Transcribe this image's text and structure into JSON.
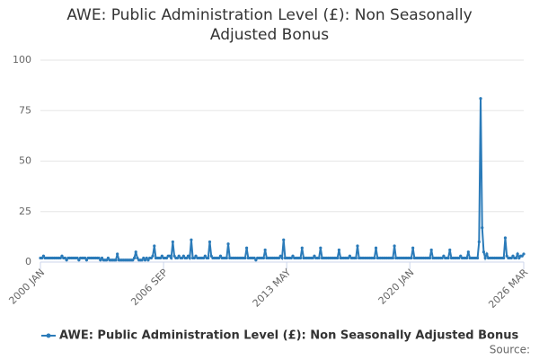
{
  "chart_data": {
    "type": "line",
    "title": "AWE: Public Administration Level (£): Non Seasonally Adjusted Bonus",
    "source_label": "Source:",
    "ylim": [
      0,
      100
    ],
    "yticks": [
      0,
      25,
      50,
      75,
      100
    ],
    "grid": true,
    "legend": "bottom",
    "categories": [
      "2000 JAN",
      null,
      null,
      null,
      null,
      null,
      null,
      null,
      null,
      null,
      null,
      null,
      null,
      null,
      null,
      null,
      null,
      null,
      null,
      null,
      null,
      null,
      null,
      null,
      null,
      null,
      null,
      null,
      null,
      null,
      null,
      null,
      null,
      null,
      null,
      null,
      null,
      null,
      null,
      null,
      null,
      null,
      null,
      null,
      null,
      null,
      null,
      null,
      null,
      null,
      null,
      null,
      null,
      null,
      null,
      null,
      null,
      null,
      null,
      null,
      null,
      null,
      null,
      null,
      null,
      null,
      null,
      null,
      null,
      null,
      null,
      null,
      null,
      null,
      null,
      null,
      null,
      null,
      null,
      null,
      "2006 SEP",
      null,
      null,
      null,
      null,
      null,
      null,
      null,
      null,
      null,
      null,
      null,
      null,
      null,
      null,
      null,
      null,
      null,
      null,
      null,
      null,
      null,
      null,
      null,
      null,
      null,
      null,
      null,
      null,
      null,
      null,
      null,
      null,
      null,
      null,
      null,
      null,
      null,
      null,
      null,
      null,
      null,
      null,
      null,
      null,
      null,
      null,
      null,
      null,
      null,
      null,
      null,
      null,
      null,
      null,
      null,
      null,
      null,
      null,
      null,
      null,
      null,
      null,
      null,
      null,
      null,
      null,
      null,
      null,
      null,
      null,
      null,
      null,
      null,
      null,
      null,
      null,
      null,
      null,
      null,
      "2013 MAY",
      null,
      null,
      null,
      null,
      null,
      null,
      null,
      null,
      null,
      null,
      null,
      null,
      null,
      null,
      null,
      null,
      null,
      null,
      null,
      null,
      null,
      null,
      null,
      null,
      null,
      null,
      null,
      null,
      null,
      null,
      null,
      null,
      null,
      null,
      null,
      null,
      null,
      null,
      null,
      null,
      null,
      null,
      null,
      null,
      null,
      null,
      null,
      null,
      null,
      null,
      null,
      null,
      null,
      null,
      null,
      null,
      null,
      null,
      null,
      null,
      null,
      null,
      null,
      null,
      null,
      null,
      null,
      null,
      null,
      null,
      null,
      null,
      null,
      null,
      null,
      null,
      null,
      null,
      null,
      "2020 JAN",
      null,
      null,
      null,
      null,
      null,
      null,
      null,
      null,
      null,
      null,
      null,
      null,
      null,
      null,
      null,
      null,
      null,
      null,
      null,
      null,
      null,
      null,
      null,
      null,
      null,
      null,
      null,
      null,
      null,
      null,
      null,
      null,
      null,
      null,
      null,
      null,
      null,
      null,
      null,
      null,
      null,
      null,
      null,
      null,
      null,
      null,
      null,
      null,
      null,
      null,
      null,
      null,
      null,
      null,
      null,
      null,
      null,
      null,
      null,
      null,
      null,
      null,
      null,
      null,
      null,
      null,
      null,
      null,
      null,
      null,
      null,
      null,
      null,
      "2026 MAR"
    ],
    "series": [
      {
        "name": "AWE: Public Administration Level (£): Non Seasonally Adjusted Bonus",
        "color": "#2b7bb9",
        "values": [
          2,
          2,
          3,
          2,
          2,
          2,
          2,
          2,
          2,
          2,
          2,
          2,
          2,
          2,
          3,
          2,
          2,
          1,
          2,
          2,
          2,
          2,
          2,
          2,
          2,
          1,
          2,
          2,
          2,
          2,
          1,
          2,
          2,
          2,
          2,
          2,
          2,
          2,
          2,
          1,
          2,
          1,
          1,
          1,
          2,
          1,
          1,
          1,
          1,
          1,
          4,
          1,
          1,
          1,
          1,
          1,
          1,
          1,
          1,
          1,
          1,
          2,
          5,
          2,
          1,
          1,
          1,
          2,
          1,
          2,
          1,
          2,
          2,
          3,
          8,
          2,
          2,
          2,
          2,
          3,
          2,
          2,
          2,
          3,
          3,
          2,
          10,
          3,
          2,
          2,
          3,
          2,
          2,
          3,
          2,
          2,
          3,
          2,
          11,
          2,
          2,
          3,
          2,
          2,
          2,
          2,
          2,
          3,
          2,
          2,
          10,
          3,
          2,
          2,
          2,
          2,
          2,
          3,
          2,
          2,
          2,
          2,
          9,
          2,
          2,
          2,
          2,
          2,
          2,
          2,
          2,
          2,
          2,
          2,
          7,
          2,
          2,
          2,
          2,
          2,
          1,
          2,
          2,
          2,
          2,
          2,
          6,
          2,
          2,
          2,
          2,
          2,
          2,
          2,
          2,
          2,
          3,
          2,
          11,
          2,
          2,
          2,
          2,
          2,
          3,
          2,
          2,
          2,
          2,
          2,
          7,
          2,
          2,
          2,
          2,
          2,
          2,
          2,
          3,
          2,
          2,
          2,
          7,
          2,
          2,
          2,
          2,
          2,
          2,
          2,
          2,
          2,
          2,
          2,
          6,
          2,
          2,
          2,
          2,
          2,
          2,
          3,
          2,
          2,
          2,
          2,
          8,
          2,
          2,
          2,
          2,
          2,
          2,
          2,
          2,
          2,
          2,
          2,
          7,
          2,
          2,
          2,
          2,
          2,
          2,
          2,
          2,
          2,
          2,
          2,
          8,
          2,
          2,
          2,
          2,
          2,
          2,
          2,
          2,
          2,
          2,
          2,
          7,
          2,
          2,
          2,
          2,
          2,
          2,
          2,
          2,
          2,
          2,
          2,
          6,
          2,
          2,
          2,
          2,
          2,
          2,
          2,
          3,
          2,
          2,
          2,
          6,
          2,
          2,
          2,
          2,
          2,
          2,
          3,
          2,
          2,
          2,
          2,
          5,
          2,
          2,
          2,
          2,
          2,
          2,
          10,
          81,
          17,
          5,
          2,
          4,
          2,
          2,
          2,
          2,
          2,
          2,
          2,
          2,
          2,
          2,
          2,
          12,
          3,
          2,
          2,
          2,
          3,
          2,
          2,
          4,
          2,
          3,
          3,
          4
        ]
      }
    ]
  }
}
